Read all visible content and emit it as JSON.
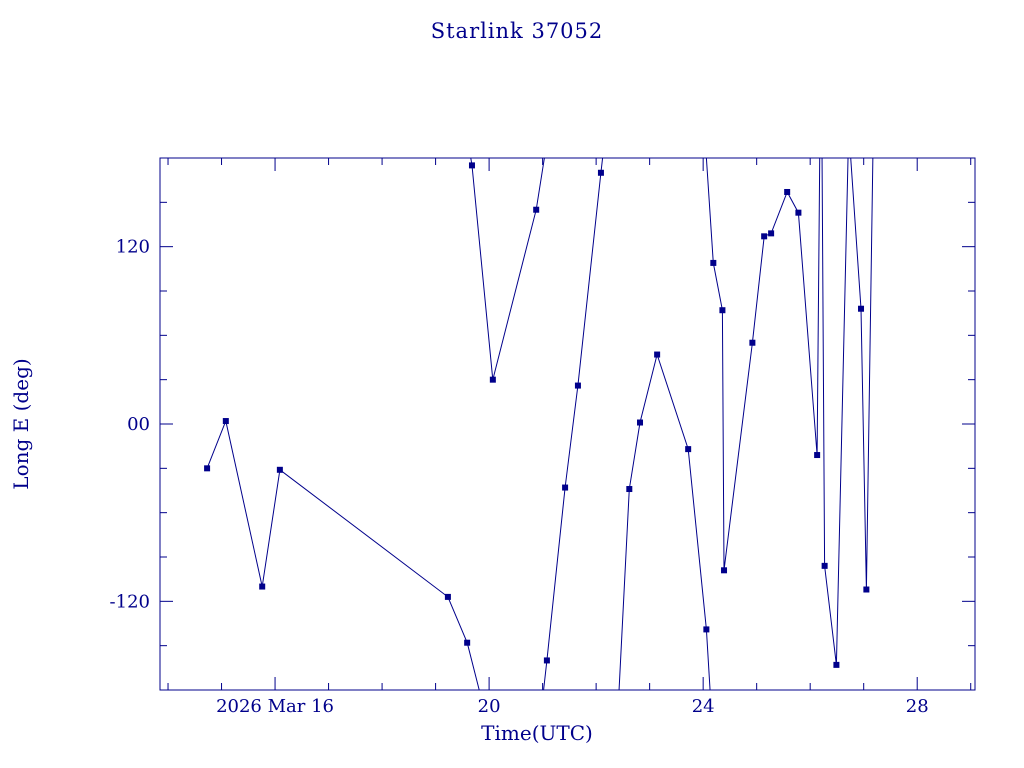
{
  "page": {
    "background": "#ffffff"
  },
  "chart_data": {
    "type": "line",
    "title": "Starlink 37052",
    "xlabel": "Time(UTC)",
    "ylabel": "Long E (deg)",
    "x_unit": "day of month, 2026 March",
    "xlim": [
      13.85,
      29.08
    ],
    "ylim": [
      -180,
      180
    ],
    "grid": false,
    "legend": "none",
    "x_major_ticks": [
      {
        "value": 16,
        "label": "2026 Mar 16"
      },
      {
        "value": 20,
        "label": "20"
      },
      {
        "value": 24,
        "label": "24"
      },
      {
        "value": 28,
        "label": "28"
      }
    ],
    "x_minor_step": 1,
    "y_major_ticks": [
      {
        "value": -120,
        "label": "-120"
      },
      {
        "value": 0,
        "label": "00"
      },
      {
        "value": 120,
        "label": "120"
      }
    ],
    "y_minor_step": 30,
    "line_color": "#00008B",
    "text_color": "#00008B",
    "marker": "square",
    "point_format": [
      "time_day_utc",
      "long_e_deg",
      "has_marker"
    ],
    "segments": [
      {
        "points": [
          [
            14.73,
            -30,
            1
          ],
          [
            15.08,
            2,
            1
          ],
          [
            15.76,
            -110,
            1
          ],
          [
            16.09,
            -31,
            1
          ],
          [
            19.23,
            -117,
            1
          ],
          [
            19.59,
            -148,
            1
          ],
          [
            19.85,
            -185,
            0
          ]
        ]
      },
      {
        "points": [
          [
            19.63,
            186,
            0
          ],
          [
            19.68,
            175,
            1
          ],
          [
            20.07,
            30,
            1
          ],
          [
            20.88,
            145,
            1
          ],
          [
            21.06,
            186,
            0
          ]
        ]
      },
      {
        "points": [
          [
            21.0,
            -186,
            0
          ],
          [
            21.08,
            -160,
            1
          ],
          [
            21.42,
            -43,
            1
          ],
          [
            21.66,
            26,
            1
          ],
          [
            22.09,
            170,
            1
          ],
          [
            22.14,
            186,
            0
          ]
        ]
      },
      {
        "points": [
          [
            22.42,
            -186,
            0
          ],
          [
            22.62,
            -44,
            1
          ],
          [
            22.82,
            1,
            1
          ],
          [
            23.14,
            47,
            1
          ],
          [
            23.72,
            -17,
            1
          ],
          [
            24.06,
            -139,
            1
          ],
          [
            24.14,
            -186,
            0
          ]
        ]
      },
      {
        "points": [
          [
            24.05,
            186,
            0
          ],
          [
            24.19,
            109,
            1
          ],
          [
            24.36,
            77,
            1
          ],
          [
            24.39,
            -99,
            1
          ],
          [
            24.92,
            55,
            1
          ],
          [
            25.14,
            127,
            1
          ],
          [
            25.27,
            129,
            1
          ],
          [
            25.57,
            157,
            1
          ],
          [
            25.78,
            143,
            1
          ],
          [
            26.13,
            -21,
            1
          ],
          [
            26.18,
            186,
            0
          ]
        ]
      },
      {
        "points": [
          [
            26.22,
            186,
            0
          ],
          [
            26.27,
            -96,
            1
          ],
          [
            26.49,
            -163,
            1
          ],
          [
            26.72,
            200,
            0
          ],
          [
            26.95,
            78,
            1
          ],
          [
            27.05,
            -112,
            1
          ],
          [
            27.18,
            200,
            0
          ]
        ]
      }
    ]
  }
}
